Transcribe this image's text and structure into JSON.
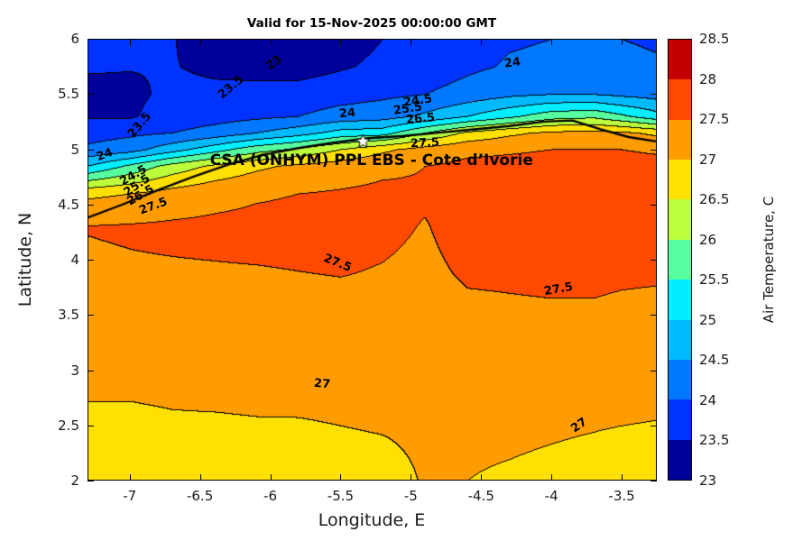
{
  "chart_data": {
    "type": "heatmap",
    "subtype": "filled-contour-map",
    "title": "Valid for 15-Nov-2025 00:00:00 GMT",
    "xlabel": "Longitude, E",
    "ylabel": "Latitude, N",
    "colorbar_label": "Air Temperature, C",
    "xlim": [
      -7.3,
      -3.25
    ],
    "ylim": [
      2,
      6
    ],
    "clim": [
      23,
      28.5
    ],
    "contour_interval": 0.5,
    "grid_on": false,
    "legend_position": "colorbar-right",
    "annotation": {
      "text": "CSA (ONHYM) PPL EBS  - Cote d’Ivorie",
      "lon": -5.28,
      "lat": 4.9
    },
    "marker": {
      "shape": "star",
      "lon": -5.34,
      "lat": 5.07,
      "color": "#ffffff"
    },
    "xticks": [
      {
        "value": -7,
        "label": "-7"
      },
      {
        "value": -6.5,
        "label": "-6.5"
      },
      {
        "value": -6,
        "label": "-6"
      },
      {
        "value": -5.5,
        "label": "-5.5"
      },
      {
        "value": -5,
        "label": "-5"
      },
      {
        "value": -4.5,
        "label": "-4.5"
      },
      {
        "value": -4,
        "label": "-4"
      },
      {
        "value": -3.5,
        "label": "-3.5"
      }
    ],
    "yticks": [
      {
        "value": 2,
        "label": "2"
      },
      {
        "value": 2.5,
        "label": "2.5"
      },
      {
        "value": 3,
        "label": "3"
      },
      {
        "value": 3.5,
        "label": "3.5"
      },
      {
        "value": 4,
        "label": "4"
      },
      {
        "value": 4.5,
        "label": "4.5"
      },
      {
        "value": 5,
        "label": "5"
      },
      {
        "value": 5.5,
        "label": "5.5"
      },
      {
        "value": 6,
        "label": "6"
      }
    ],
    "colorbar_ticks": [
      {
        "value": 23,
        "label": "23"
      },
      {
        "value": 23.5,
        "label": "23.5"
      },
      {
        "value": 24,
        "label": "24"
      },
      {
        "value": 24.5,
        "label": "24.5"
      },
      {
        "value": 25,
        "label": "25"
      },
      {
        "value": 25.5,
        "label": "25.5"
      },
      {
        "value": 26,
        "label": "26"
      },
      {
        "value": 26.5,
        "label": "26.5"
      },
      {
        "value": 27,
        "label": "27"
      },
      {
        "value": 27.5,
        "label": "27.5"
      },
      {
        "value": 28,
        "label": "28"
      },
      {
        "value": 28.5,
        "label": "28.5"
      }
    ],
    "band_colors": [
      "#00009B",
      "#0033FF",
      "#0078FF",
      "#00BAFF",
      "#00EEFF",
      "#56FFA0",
      "#BDFF3C",
      "#FFE000",
      "#FF9D00",
      "#FF4A00",
      "#C30000"
    ],
    "grid": {
      "lons": [
        -7.3,
        -7.0,
        -6.7,
        -6.4,
        -6.1,
        -5.8,
        -5.5,
        -5.2,
        -4.9,
        -4.6,
        -4.3,
        -4.0,
        -3.7,
        -3.5,
        -3.25
      ],
      "lats": [
        2.0,
        2.5,
        3.0,
        3.5,
        3.9,
        4.3,
        4.6,
        4.85,
        5.0,
        5.15,
        5.3,
        5.5,
        5.75,
        6.0
      ],
      "temps": [
        [
          26.8,
          26.8,
          26.82,
          26.82,
          26.85,
          26.85,
          26.88,
          26.9,
          27.02,
          27.0,
          26.95,
          26.9,
          26.85,
          26.8,
          26.78
        ],
        [
          26.92,
          26.92,
          26.95,
          26.95,
          26.97,
          26.97,
          27.0,
          27.02,
          27.05,
          27.08,
          27.08,
          27.05,
          27.02,
          27.0,
          26.98
        ],
        [
          27.1,
          27.1,
          27.12,
          27.15,
          27.15,
          27.17,
          27.18,
          27.2,
          27.2,
          27.22,
          27.25,
          27.25,
          27.22,
          27.2,
          27.18
        ],
        [
          27.3,
          27.3,
          27.32,
          27.33,
          27.35,
          27.36,
          27.37,
          27.38,
          27.35,
          27.42,
          27.44,
          27.45,
          27.45,
          27.42,
          27.4
        ],
        [
          27.42,
          27.45,
          27.46,
          27.47,
          27.48,
          27.5,
          27.52,
          27.48,
          27.42,
          27.55,
          27.56,
          27.58,
          27.58,
          27.56,
          27.55
        ],
        [
          27.52,
          27.55,
          27.58,
          27.6,
          27.62,
          27.63,
          27.64,
          27.58,
          27.48,
          27.65,
          27.66,
          27.68,
          27.68,
          27.66,
          27.65
        ],
        [
          26.9,
          27.0,
          27.2,
          27.35,
          27.45,
          27.5,
          27.55,
          27.6,
          27.55,
          27.68,
          27.7,
          27.72,
          27.72,
          27.7,
          27.68
        ],
        [
          25.0,
          25.6,
          26.2,
          26.6,
          26.9,
          27.1,
          27.25,
          27.4,
          27.5,
          27.6,
          27.62,
          27.65,
          27.66,
          27.64,
          27.62
        ],
        [
          24.1,
          24.3,
          24.8,
          25.3,
          25.8,
          26.1,
          26.5,
          26.9,
          27.2,
          27.4,
          27.45,
          27.5,
          27.52,
          27.5,
          27.45
        ],
        [
          23.8,
          23.9,
          24.0,
          24.2,
          24.5,
          24.8,
          25.2,
          25.3,
          26.0,
          26.6,
          26.9,
          27.1,
          27.15,
          27.1,
          26.9
        ],
        [
          23.45,
          23.45,
          23.7,
          23.8,
          23.9,
          24.0,
          24.2,
          24.3,
          24.6,
          25.0,
          25.4,
          25.8,
          25.9,
          25.6,
          25.2
        ],
        [
          23.35,
          23.4,
          23.6,
          23.6,
          23.65,
          23.7,
          23.8,
          23.9,
          24.0,
          24.2,
          24.4,
          24.5,
          24.5,
          24.4,
          24.3
        ],
        [
          23.55,
          23.52,
          23.52,
          23.42,
          23.35,
          23.3,
          23.45,
          23.6,
          23.7,
          23.9,
          24.05,
          24.1,
          24.15,
          24.1,
          24.05
        ],
        [
          23.6,
          23.58,
          23.52,
          23.3,
          23.2,
          23.15,
          23.3,
          23.5,
          23.6,
          23.8,
          23.95,
          24.0,
          24.05,
          24.0,
          23.95
        ]
      ]
    },
    "coastline": [
      [
        -7.3,
        4.38
      ],
      [
        -7.05,
        4.5
      ],
      [
        -6.8,
        4.63
      ],
      [
        -6.55,
        4.75
      ],
      [
        -6.3,
        4.86
      ],
      [
        -6.05,
        4.95
      ],
      [
        -5.8,
        5.01
      ],
      [
        -5.55,
        5.06
      ],
      [
        -5.3,
        5.1
      ],
      [
        -5.05,
        5.12
      ],
      [
        -4.8,
        5.15
      ],
      [
        -4.55,
        5.18
      ],
      [
        -4.3,
        5.21
      ],
      [
        -4.05,
        5.25
      ],
      [
        -3.85,
        5.26
      ],
      [
        -3.65,
        5.18
      ],
      [
        -3.45,
        5.11
      ],
      [
        -3.25,
        5.07
      ]
    ],
    "contour_labels": [
      {
        "text": "23",
        "lon": -5.97,
        "lat": 5.78,
        "rot": -35
      },
      {
        "text": "23.5",
        "lon": -6.28,
        "lat": 5.56,
        "rot": -40
      },
      {
        "text": "23.5",
        "lon": -6.93,
        "lat": 5.22,
        "rot": -50
      },
      {
        "text": "24",
        "lon": -5.45,
        "lat": 5.32,
        "rot": -5
      },
      {
        "text": "24.5",
        "lon": -4.95,
        "lat": 5.44,
        "rot": -8
      },
      {
        "text": "24",
        "lon": -4.28,
        "lat": 5.78,
        "rot": -8
      },
      {
        "text": "25.5",
        "lon": -5.02,
        "lat": 5.36,
        "rot": -8
      },
      {
        "text": "26.5",
        "lon": -4.93,
        "lat": 5.27,
        "rot": -5
      },
      {
        "text": "27.5",
        "lon": -4.9,
        "lat": 5.05,
        "rot": -3
      },
      {
        "text": "24",
        "lon": -7.18,
        "lat": 4.95,
        "rot": -20
      },
      {
        "text": "24.5",
        "lon": -6.97,
        "lat": 4.76,
        "rot": -30
      },
      {
        "text": "25.5",
        "lon": -6.95,
        "lat": 4.67,
        "rot": -35
      },
      {
        "text": "26.5",
        "lon": -6.92,
        "lat": 4.58,
        "rot": -30
      },
      {
        "text": "27.5",
        "lon": -6.83,
        "lat": 4.48,
        "rot": -20
      },
      {
        "text": "27.5",
        "lon": -5.52,
        "lat": 3.97,
        "rot": 22
      },
      {
        "text": "27.5",
        "lon": -3.95,
        "lat": 3.73,
        "rot": -10
      },
      {
        "text": "27",
        "lon": -5.63,
        "lat": 2.87,
        "rot": 5
      },
      {
        "text": "27",
        "lon": -3.8,
        "lat": 2.5,
        "rot": -35
      }
    ]
  }
}
